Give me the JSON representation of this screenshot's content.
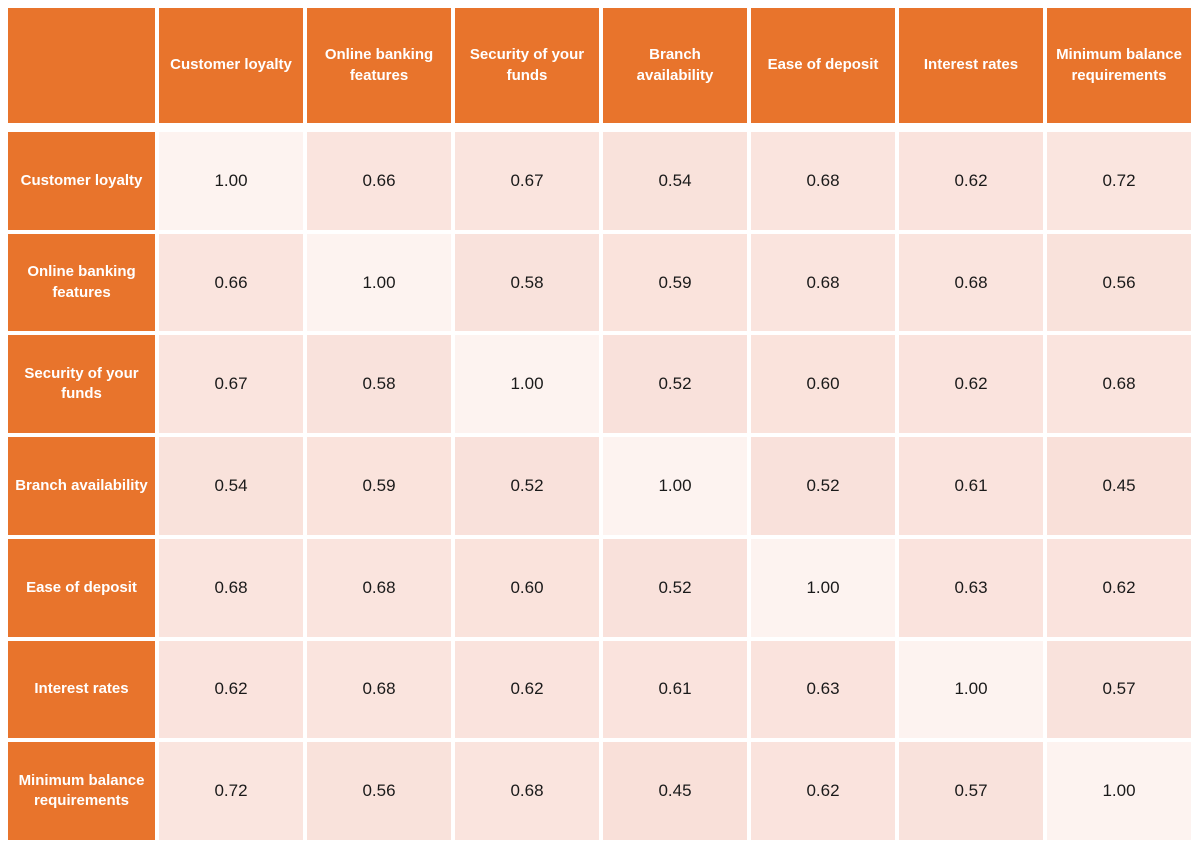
{
  "table": {
    "corner_label": "",
    "columns": [
      "Customer loyalty",
      "Online banking features",
      "Security of your funds",
      "Branch availability",
      "Ease of deposit",
      "Interest rates",
      "Minimum balance requirements"
    ],
    "rows": [
      {
        "label": "Customer loyalty",
        "values": [
          "1.00",
          "0.66",
          "0.67",
          "0.54",
          "0.68",
          "0.62",
          "0.72"
        ]
      },
      {
        "label": "Online banking features",
        "values": [
          "0.66",
          "1.00",
          "0.58",
          "0.59",
          "0.68",
          "0.68",
          "0.56"
        ]
      },
      {
        "label": "Security of your funds",
        "values": [
          "0.67",
          "0.58",
          "1.00",
          "0.52",
          "0.60",
          "0.62",
          "0.68"
        ]
      },
      {
        "label": "Branch availability",
        "values": [
          "0.54",
          "0.59",
          "0.52",
          "1.00",
          "0.52",
          "0.61",
          "0.45"
        ]
      },
      {
        "label": "Ease of deposit",
        "values": [
          "0.68",
          "0.68",
          "0.60",
          "0.52",
          "1.00",
          "0.63",
          "0.62"
        ]
      },
      {
        "label": "Interest rates",
        "values": [
          "0.62",
          "0.68",
          "0.62",
          "0.61",
          "0.63",
          "1.00",
          "0.57"
        ]
      },
      {
        "label": "Minimum balance requirements",
        "values": [
          "0.72",
          "0.56",
          "0.68",
          "0.45",
          "0.62",
          "0.57",
          "1.00"
        ]
      }
    ]
  },
  "chart_data": {
    "type": "heatmap",
    "title": "",
    "categories": [
      "Customer loyalty",
      "Online banking features",
      "Security of your funds",
      "Branch availability",
      "Ease of deposit",
      "Interest rates",
      "Minimum balance requirements"
    ],
    "matrix": [
      [
        1.0,
        0.66,
        0.67,
        0.54,
        0.68,
        0.62,
        0.72
      ],
      [
        0.66,
        1.0,
        0.58,
        0.59,
        0.68,
        0.68,
        0.56
      ],
      [
        0.67,
        0.58,
        1.0,
        0.52,
        0.6,
        0.62,
        0.68
      ],
      [
        0.54,
        0.59,
        0.52,
        1.0,
        0.52,
        0.61,
        0.45
      ],
      [
        0.68,
        0.68,
        0.6,
        0.52,
        1.0,
        0.63,
        0.62
      ],
      [
        0.62,
        0.68,
        0.62,
        0.61,
        0.63,
        1.0,
        0.57
      ],
      [
        0.72,
        0.56,
        0.68,
        0.45,
        0.62,
        0.57,
        1.0
      ]
    ],
    "value_range": [
      0.45,
      1.0
    ],
    "legend": "none",
    "colors": {
      "header_bg": "#E8742C",
      "header_text": "#FFFFFF",
      "cell_diagonal": "#FDF3F0",
      "cell_low": "#F9E0D9",
      "cell_high": "#FAE5DF",
      "grid_lines": "#FFFFFF",
      "value_text": "#1A1A1A"
    }
  }
}
